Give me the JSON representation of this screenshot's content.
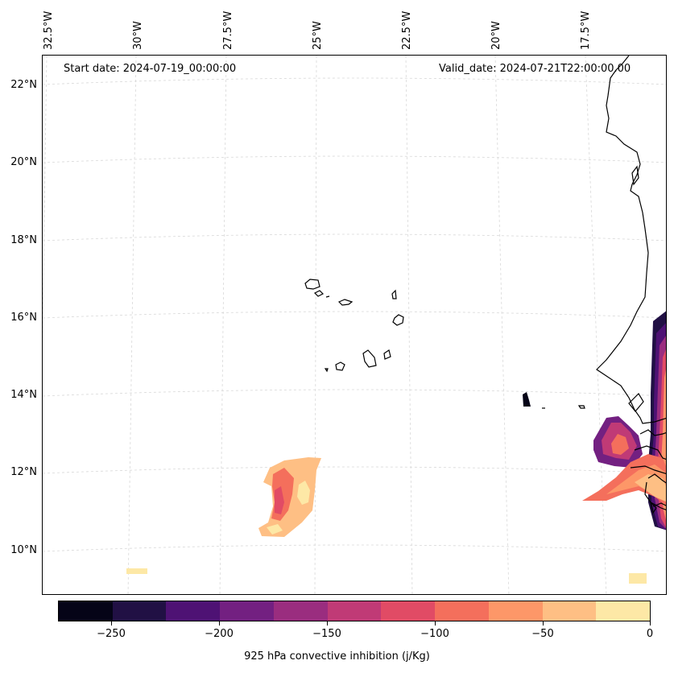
{
  "map": {
    "lon_labels": [
      "32.5°W",
      "30°W",
      "27.5°W",
      "25°W",
      "22.5°W",
      "20°W",
      "17.5°W"
    ],
    "lat_labels": [
      "22°N",
      "20°N",
      "18°N",
      "16°N",
      "14°N",
      "12°N",
      "10°N"
    ],
    "start_date": "Start date: 2024-07-19_00:00:00",
    "valid_date": "Valid_date: 2024-07-21T22:00:00.00"
  },
  "colorbar": {
    "title": "925 hPa convective inhibition (j/Kg)",
    "tick_labels": [
      "−250",
      "−200",
      "−150",
      "−100",
      "−50",
      "0"
    ],
    "colors": [
      "#050417",
      "#211044",
      "#4e1274",
      "#732081",
      "#9a2d7f",
      "#c03a76",
      "#e14b65",
      "#f46f5c",
      "#fd9768",
      "#febf84",
      "#fde8a6"
    ]
  }
}
